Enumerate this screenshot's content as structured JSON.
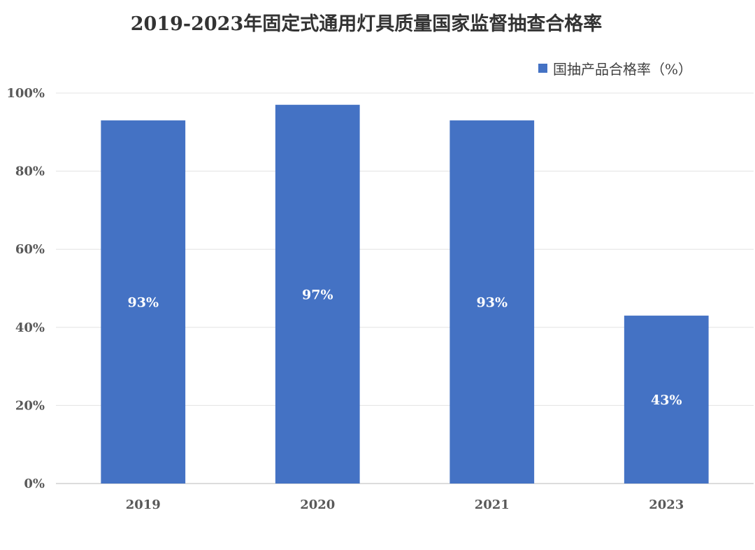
{
  "chart_data": {
    "type": "bar",
    "title": "2019-2023年固定式通用灯具质量国家监督抽查合格率",
    "categories": [
      "2019",
      "2020",
      "2021",
      "2023"
    ],
    "series": [
      {
        "name": "国抽产品合格率（%）",
        "values": [
          93,
          97,
          93,
          43
        ],
        "color": "#4472c4"
      }
    ],
    "data_labels": [
      "93%",
      "97%",
      "93%",
      "43%"
    ],
    "ylim": [
      0,
      100
    ],
    "y_ticks": [
      0,
      20,
      40,
      60,
      80,
      100
    ],
    "y_tick_labels": [
      "0%",
      "20%",
      "40%",
      "60%",
      "80%",
      "100%"
    ],
    "xlabel": "",
    "ylabel": "",
    "grid": true,
    "legend_position": "top-right"
  }
}
